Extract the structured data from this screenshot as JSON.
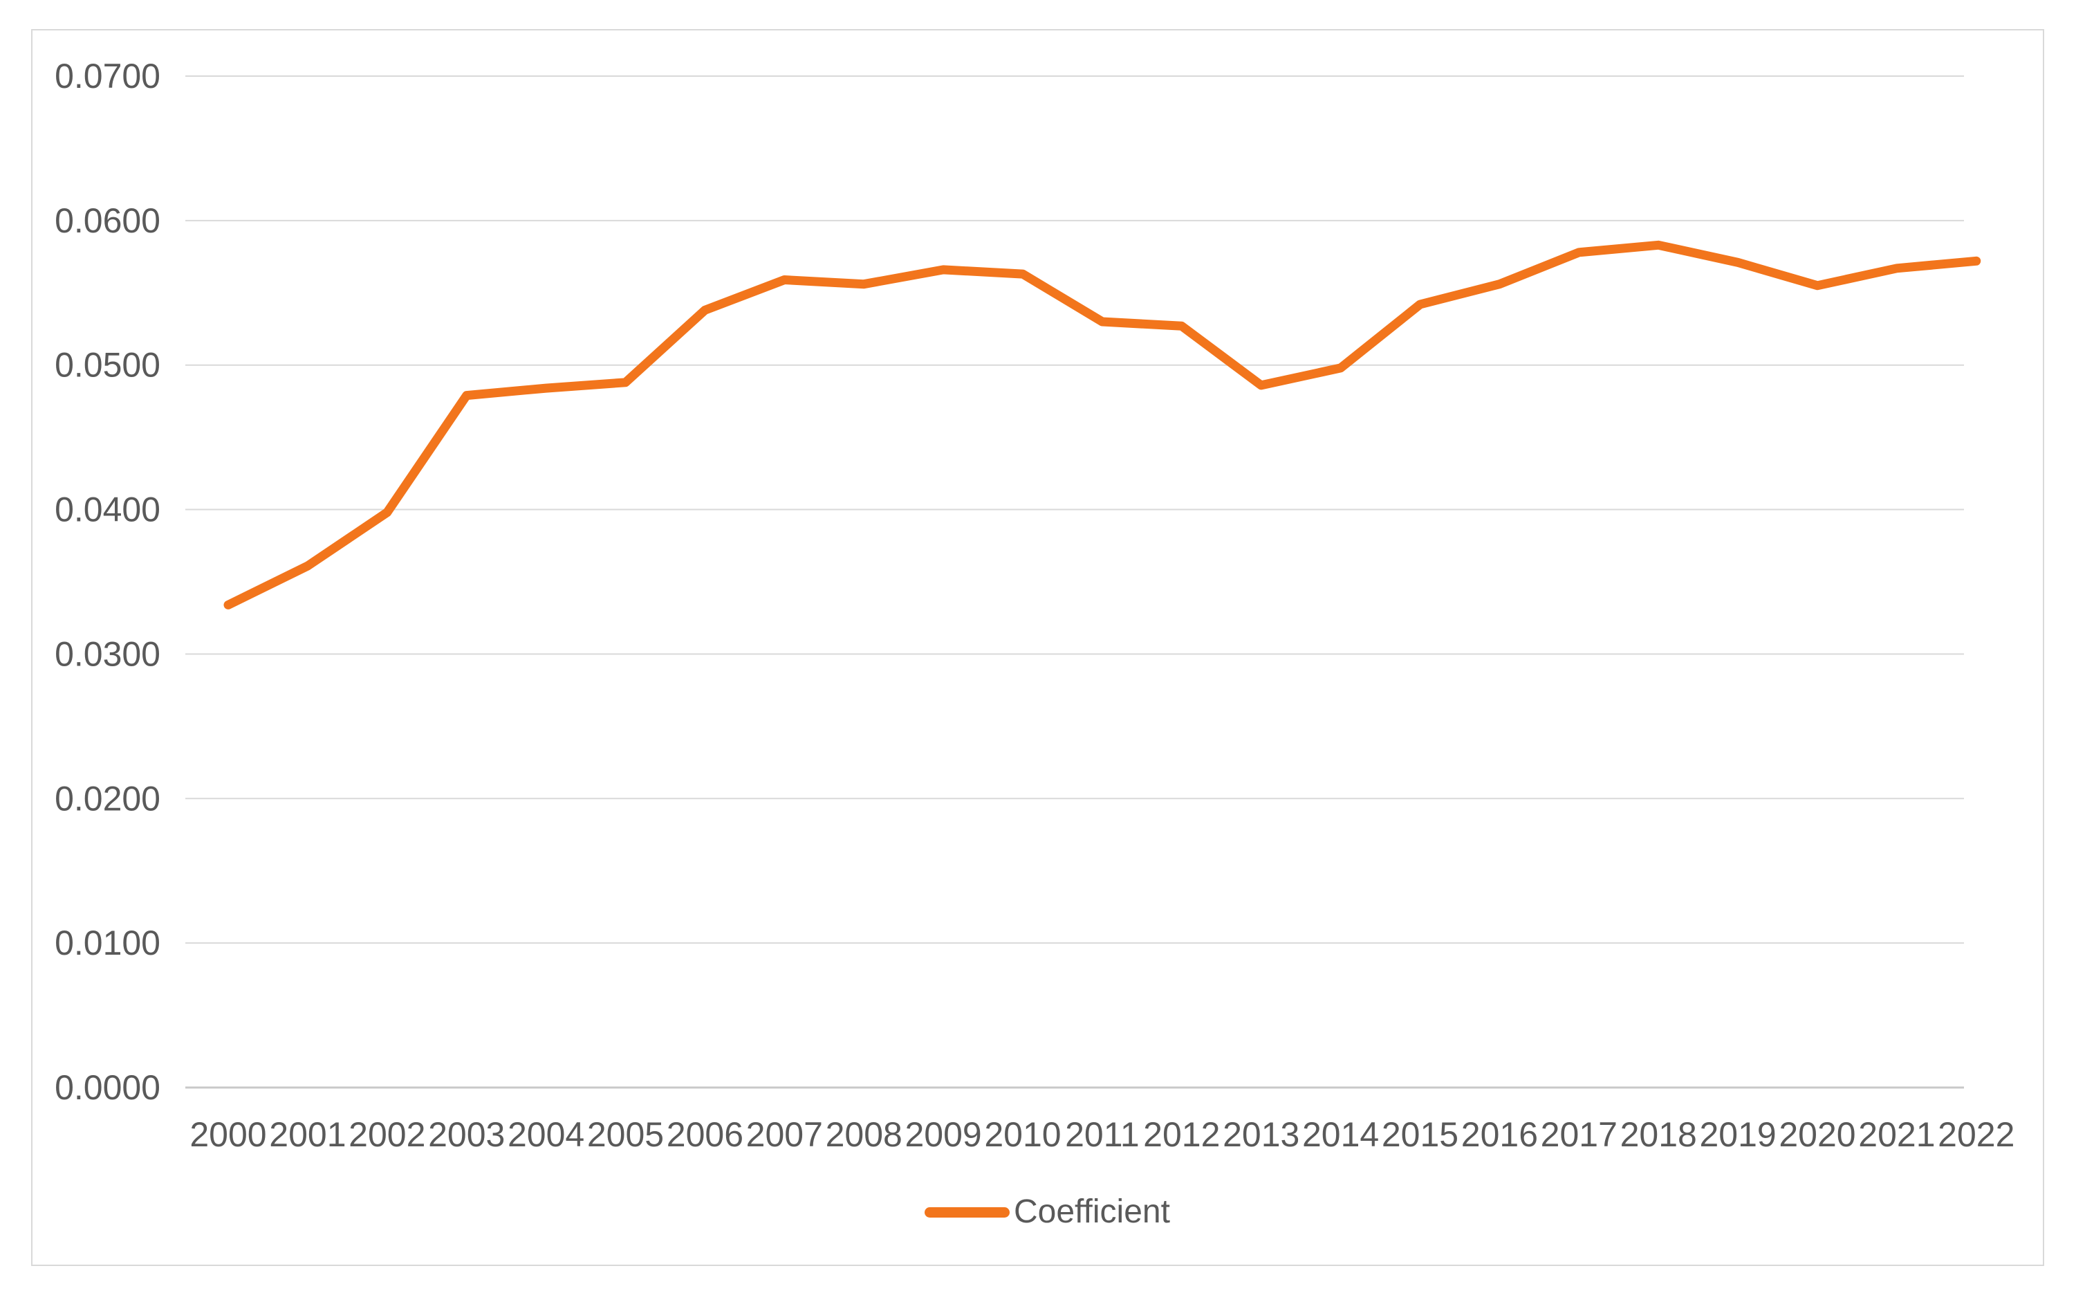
{
  "chart_data": {
    "type": "line",
    "title": "",
    "xlabel": "",
    "ylabel": "",
    "categories": [
      "2000",
      "2001",
      "2002",
      "2003",
      "2004",
      "2005",
      "2006",
      "2007",
      "2008",
      "2009",
      "2010",
      "2011",
      "2012",
      "2013",
      "2014",
      "2015",
      "2016",
      "2017",
      "2018",
      "2019",
      "2020",
      "2021",
      "2022"
    ],
    "series": [
      {
        "name": "Coefficient",
        "values": [
          0.0334,
          0.0361,
          0.0398,
          0.0479,
          0.0484,
          0.0488,
          0.0538,
          0.0559,
          0.0556,
          0.0566,
          0.0563,
          0.053,
          0.0527,
          0.0486,
          0.0498,
          0.0542,
          0.0556,
          0.0578,
          0.0583,
          0.0571,
          0.0555,
          0.0567,
          0.0572
        ]
      }
    ],
    "ylim": [
      0.0,
      0.07
    ],
    "y_ticks": [
      "0.0000",
      "0.0100",
      "0.0200",
      "0.0300",
      "0.0400",
      "0.0500",
      "0.0600",
      "0.0700"
    ],
    "y_tick_step": 0.01,
    "grid": "horizontal",
    "legend_position": "bottom"
  },
  "legend": {
    "label": "Coefficient"
  },
  "colors": {
    "series": "#f2751c",
    "grid": "#d9d9d9",
    "baseline": "#c9c9c9",
    "axis_text": "#595959",
    "frame_border": "#d9d9d9",
    "background": "#ffffff"
  }
}
